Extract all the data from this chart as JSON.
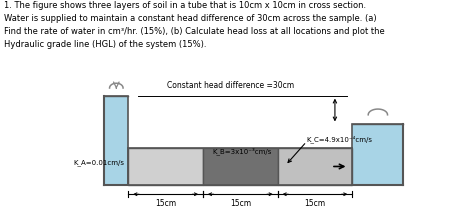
{
  "title_text": "1. The figure shows three layers of soil in a tube that is 10cm x 10cm in cross section.\nWater is supplied to maintain a constant head difference of 30cm across the sample. (a)\nFind the rate of water in cm³/hr. (15%), (b) Calculate head loss at all locations and plot the\nHydraulic grade line (HGL) of the system (15%).",
  "constant_head_label": "Constant head difference =30cm",
  "kA_label": "K_A=0.01cm/s",
  "kB_label": "K_B=3x10⁻³cm/s",
  "kC_label": "K_C=4.9x10⁻⁴cm/s",
  "dim_label": "15cm",
  "left_tank_color": "#a8d4e6",
  "right_tank_color": "#a8d4e6",
  "soil_A_color": "#d0d0d0",
  "soil_B_color": "#707070",
  "soil_C_color": "#c0c0c0",
  "bg_color": "#ffffff",
  "text_color": "#000000",
  "border_color": "#555555",
  "figsize": [
    4.74,
    2.08
  ],
  "dpi": 100
}
